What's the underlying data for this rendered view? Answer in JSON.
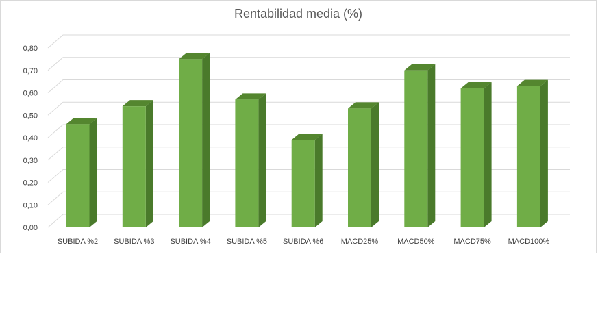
{
  "chart_data": {
    "type": "bar",
    "title": "Rentabilidad media (%)",
    "categories": [
      "SUBIDA %2",
      "SUBIDA %3",
      "SUBIDA %4",
      "SUBIDA %5",
      "SUBIDA %6",
      "MACD25%",
      "MACD50%",
      "MACD75%",
      "MACD100%"
    ],
    "values": [
      0.46,
      0.54,
      0.75,
      0.57,
      0.39,
      0.53,
      0.7,
      0.62,
      0.63
    ],
    "ylim": [
      0,
      0.8
    ],
    "yticks": [
      "0,00",
      "0,10",
      "0,20",
      "0,30",
      "0,40",
      "0,50",
      "0,60",
      "0,70",
      "0,80"
    ],
    "grid": true,
    "style": "3d-column",
    "colors": {
      "front": "#70ad47",
      "side": "#4a7a2b",
      "top": "#54862f",
      "grid": "#d9d9d9"
    }
  }
}
